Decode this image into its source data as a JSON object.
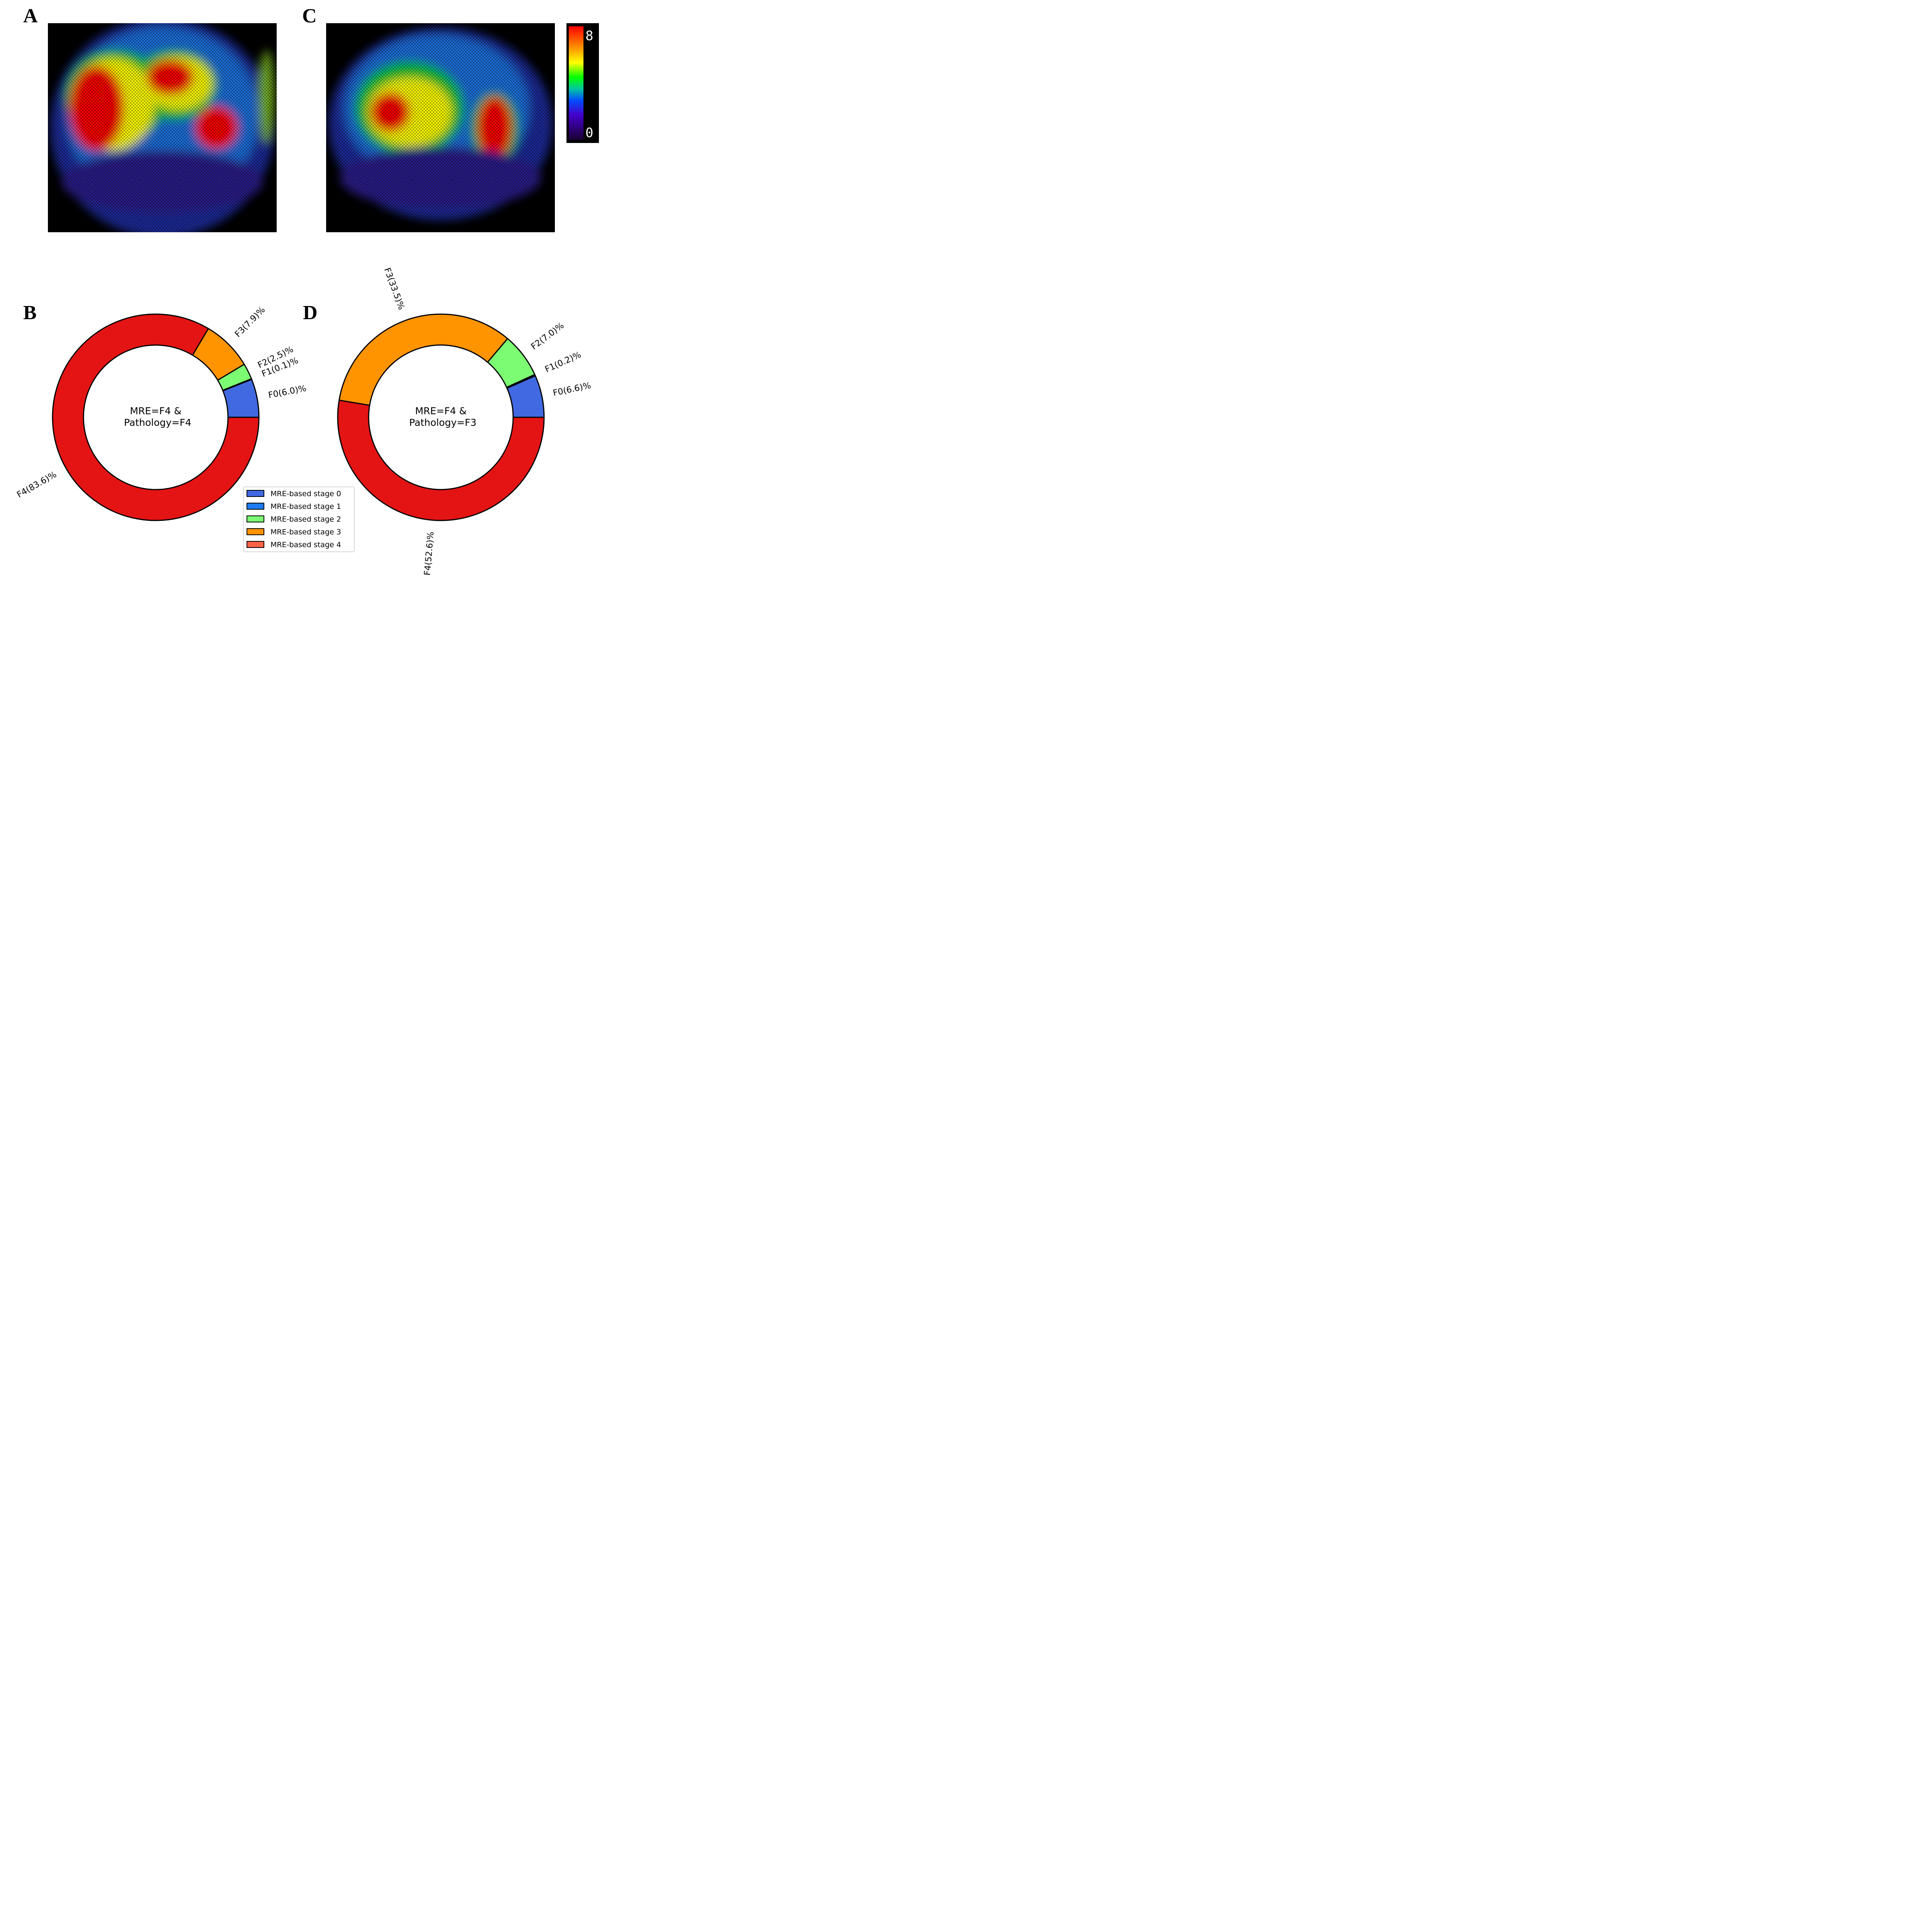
{
  "panels": {
    "a": "A",
    "b": "B",
    "c": "C",
    "d": "D"
  },
  "colorbar": {
    "max_label": "8",
    "min_label": "0",
    "colors": [
      "#ff0000",
      "#ff8c00",
      "#ffff00",
      "#00ff00",
      "#00cc88",
      "#0055ff",
      "#4400cc",
      "#1a0033"
    ]
  },
  "chart_data": [
    {
      "type": "pie",
      "center_label": [
        "MRE=F4 &",
        "Pathology=F4"
      ],
      "slices": [
        {
          "label": "F0(6.0)%",
          "value": 6.0,
          "color": "#4169e1"
        },
        {
          "label": "F1(0.1)%",
          "value": 0.1,
          "color": "#1e7cf0"
        },
        {
          "label": "F2(2.5)%",
          "value": 2.5,
          "color": "#7cfc73"
        },
        {
          "label": "F3(7.9)%",
          "value": 7.9,
          "color": "#ff9400"
        },
        {
          "label": "F4(83.6)%",
          "value": 83.6,
          "color": "#e41414"
        }
      ]
    },
    {
      "type": "pie",
      "center_label": [
        "MRE=F4 &",
        "Pathology=F3"
      ],
      "slices": [
        {
          "label": "F0(6.6)%",
          "value": 6.6,
          "color": "#4169e1"
        },
        {
          "label": "F1(0.2)%",
          "value": 0.2,
          "color": "#1e7cf0"
        },
        {
          "label": "F2(7.0)%",
          "value": 7.0,
          "color": "#7cfc73"
        },
        {
          "label": "F3(33.5)%",
          "value": 33.5,
          "color": "#ff9400"
        },
        {
          "label": "F4(52.6)%",
          "value": 52.6,
          "color": "#e41414"
        }
      ]
    }
  ],
  "legend": {
    "items": [
      {
        "label": "MRE-based stage 0",
        "color": "#4169e1"
      },
      {
        "label": "MRE-based stage 1",
        "color": "#1e7cf0"
      },
      {
        "label": "MRE-based stage 2",
        "color": "#7cfc73"
      },
      {
        "label": "MRE-based stage 3",
        "color": "#ff9400"
      },
      {
        "label": "MRE-based stage 4",
        "color": "#ff6347"
      }
    ]
  }
}
